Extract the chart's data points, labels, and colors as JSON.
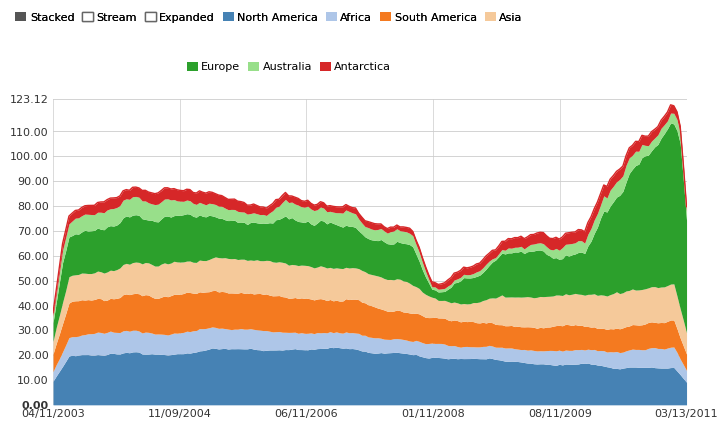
{
  "x_labels": [
    "04/11/2003",
    "11/09/2004",
    "06/11/2006",
    "01/11/2008",
    "08/11/2009",
    "03/13/2011"
  ],
  "y_ticks": [
    0.0,
    10.0,
    20.0,
    30.0,
    40.0,
    50.0,
    60.0,
    70.0,
    80.0,
    90.0,
    100.0,
    110.0,
    123.12
  ],
  "y_max": 123.12,
  "colors": {
    "NorthAmerica": "#4682b4",
    "Africa": "#aec6e8",
    "SouthAmerica": "#f47a20",
    "Asia": "#f5c99a",
    "Europe": "#2ca02c",
    "Australia": "#98df8a",
    "Antarctica": "#d62728"
  },
  "legend_row1": [
    {
      "label": "Stacked",
      "color": "#555555",
      "open": false
    },
    {
      "label": "Stream",
      "color": "#ffffff",
      "open": true
    },
    {
      "label": "Expanded",
      "color": "#ffffff",
      "open": true
    },
    {
      "label": "North America",
      "color": "#4682b4",
      "open": false
    },
    {
      "label": "Africa",
      "color": "#aec6e8",
      "open": false
    },
    {
      "label": "South America",
      "color": "#f47a20",
      "open": false
    },
    {
      "label": "Asia",
      "color": "#f5c99a",
      "open": false
    }
  ],
  "legend_row2": [
    {
      "label": "Europe",
      "color": "#2ca02c",
      "open": false
    },
    {
      "label": "Australia",
      "color": "#98df8a",
      "open": false
    },
    {
      "label": "Antarctica",
      "color": "#d62728",
      "open": false
    }
  ],
  "grid_color": "#cccccc",
  "seed": 12345,
  "n_points": 200
}
